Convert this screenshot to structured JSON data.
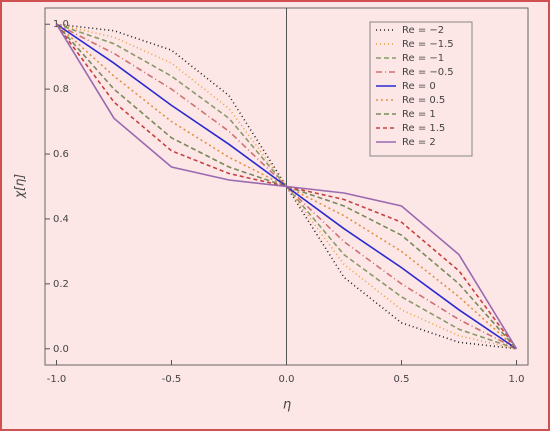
{
  "chart_data": {
    "type": "line",
    "xlabel": "η",
    "ylabel": "χ[η]",
    "x": [
      -1,
      -0.75,
      -0.5,
      -0.25,
      0,
      0.25,
      0.5,
      0.75,
      1
    ],
    "xlim": [
      -1.05,
      1.05
    ],
    "ylim": [
      -0.05,
      1.05
    ],
    "xticks": [
      {
        "value": -1,
        "label": "-1.0"
      },
      {
        "value": -0.5,
        "label": "-0.5"
      },
      {
        "value": 0,
        "label": "0.0"
      },
      {
        "value": 0.5,
        "label": "0.5"
      },
      {
        "value": 1,
        "label": "1.0"
      }
    ],
    "yticks": [
      {
        "value": 0,
        "label": "0.0"
      },
      {
        "value": 0.2,
        "label": "0.2"
      },
      {
        "value": 0.4,
        "label": "0.4"
      },
      {
        "value": 0.6,
        "label": "0.6"
      },
      {
        "value": 0.8,
        "label": "0.8"
      },
      {
        "value": 1,
        "label": "1.0"
      }
    ],
    "legend": "upper right",
    "series": [
      {
        "name": "Re = −2",
        "color": "#222222",
        "dash": "1 3",
        "values": [
          1,
          0.98,
          0.92,
          0.78,
          0.5,
          0.22,
          0.08,
          0.02,
          0
        ]
      },
      {
        "name": "Re = −1.5",
        "color": "#e8a040",
        "dash": "1 3",
        "values": [
          1,
          0.96,
          0.88,
          0.74,
          0.5,
          0.26,
          0.12,
          0.04,
          0
        ]
      },
      {
        "name": "Re = −1",
        "color": "#8a9a6a",
        "dash": "5 3",
        "values": [
          1,
          0.94,
          0.84,
          0.71,
          0.5,
          0.29,
          0.16,
          0.06,
          0
        ]
      },
      {
        "name": "Re = −0.5",
        "color": "#d07070",
        "dash": "6 3 1 3",
        "values": [
          1,
          0.91,
          0.8,
          0.67,
          0.5,
          0.33,
          0.2,
          0.09,
          0
        ]
      },
      {
        "name": "Re = 0",
        "color": "#2a2ad0",
        "dash": "",
        "values": [
          1,
          0.88,
          0.75,
          0.63,
          0.5,
          0.37,
          0.25,
          0.12,
          0
        ]
      },
      {
        "name": "Re = 0.5",
        "color": "#e09040",
        "dash": "2 3",
        "values": [
          1,
          0.84,
          0.7,
          0.59,
          0.5,
          0.41,
          0.3,
          0.16,
          0
        ]
      },
      {
        "name": "Re = 1",
        "color": "#7a8a5a",
        "dash": "5 3",
        "values": [
          1,
          0.8,
          0.65,
          0.56,
          0.5,
          0.44,
          0.35,
          0.2,
          0
        ]
      },
      {
        "name": "Re = 1.5",
        "color": "#c84040",
        "dash": "4 3",
        "values": [
          1,
          0.76,
          0.61,
          0.54,
          0.5,
          0.46,
          0.39,
          0.24,
          0
        ]
      },
      {
        "name": "Re = 2",
        "color": "#9a6ab0",
        "dash": "",
        "values": [
          1,
          0.71,
          0.56,
          0.52,
          0.5,
          0.48,
          0.44,
          0.29,
          0
        ]
      }
    ]
  }
}
